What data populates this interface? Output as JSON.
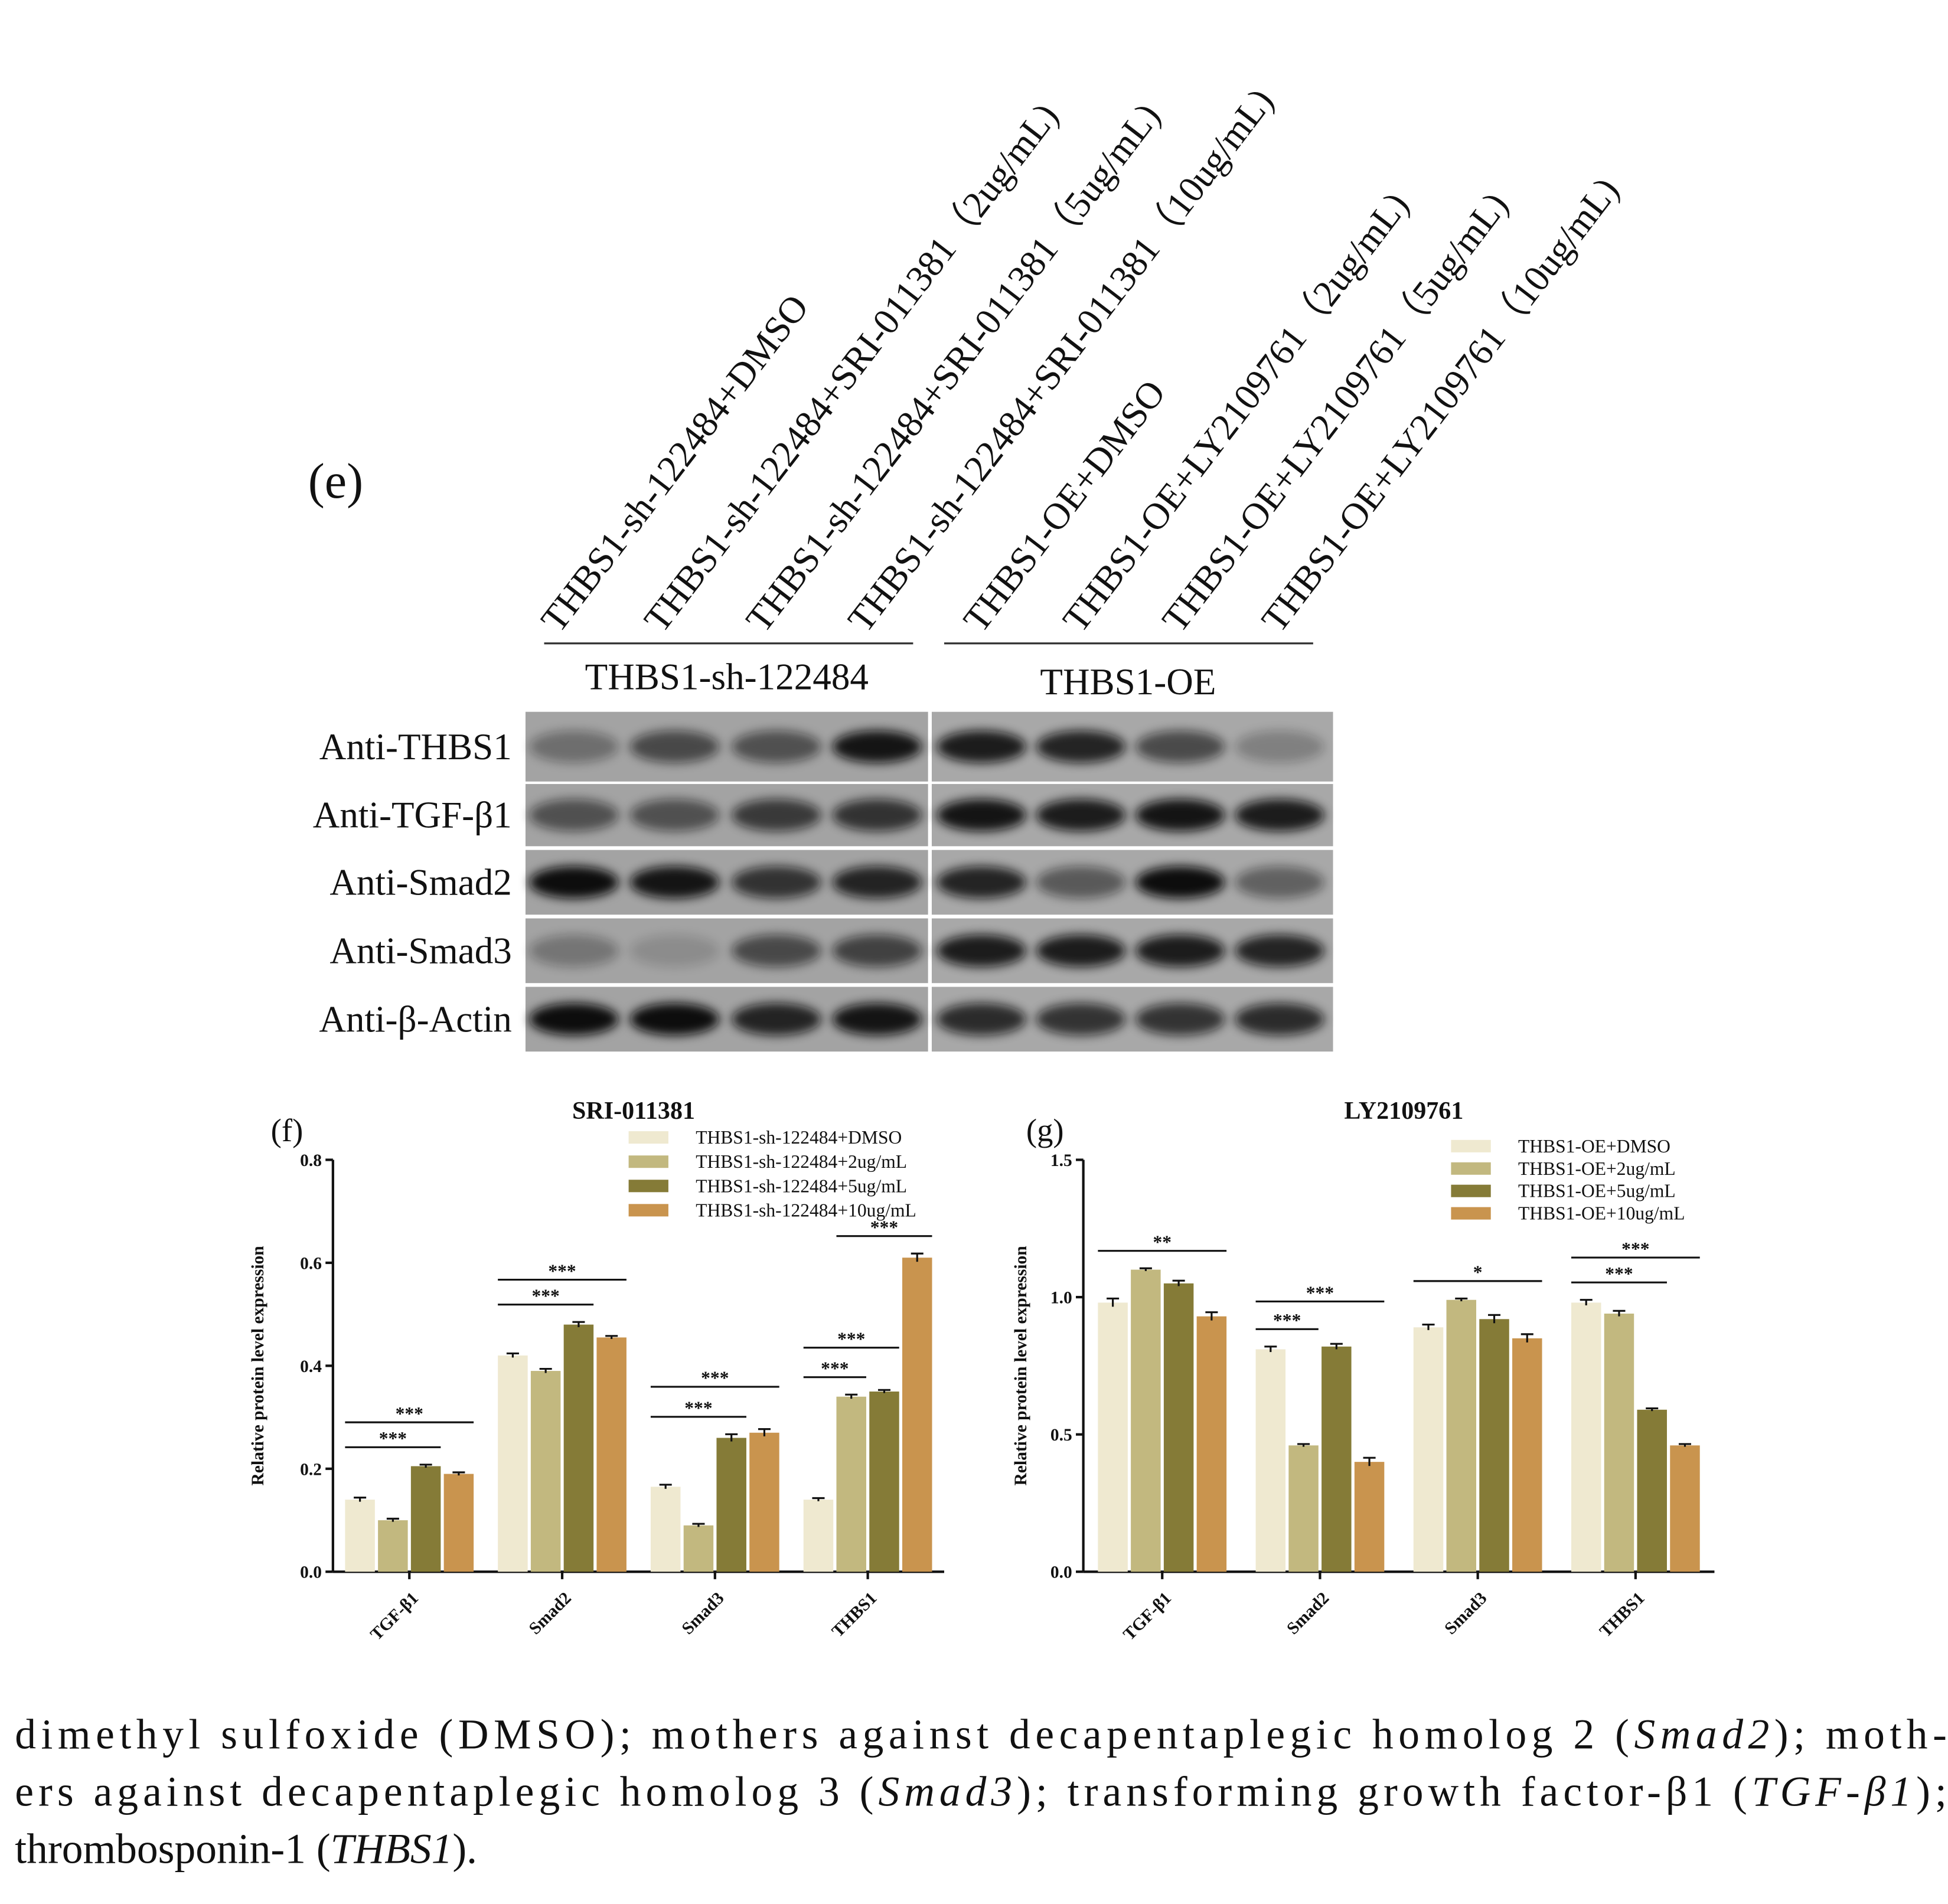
{
  "blot": {
    "panel_label": "(e)",
    "lanes": [
      "THBS1-sh-122484+DMSO",
      "THBS1-sh-122484+SRI-011381（2ug/mL)",
      "THBS1-sh-122484+SRI-011381（5ug/mL)",
      "THBS1-sh-122484+SRI-011381（10ug/mL)",
      "THBS1-OE+DMSO",
      "THBS1-OE+LY2109761（2ug/mL)",
      "THBS1-OE+LY2109761（5ug/mL)",
      "THBS1-OE+LY2109761（10ug/mL)"
    ],
    "groups": [
      "THBS1-sh-122484",
      "THBS1-OE"
    ],
    "rows": [
      "Anti-THBS1",
      "Anti-TGF-β1",
      "Anti-Smad2",
      "Anti-Smad3",
      "Anti-β-Actin"
    ]
  },
  "chart_data": [
    {
      "type": "bar",
      "panel_label": "(f)",
      "title": "SRI-011381",
      "y_label": "Relative  protein level expression",
      "categories": [
        "TGF-β1",
        "Smad2",
        "Smad3",
        "THBS1"
      ],
      "series": [
        {
          "name": "THBS1-sh-122484+DMSO",
          "color": "#efe9d0",
          "values": [
            0.14,
            0.42,
            0.165,
            0.14
          ],
          "errors": [
            0.004,
            0.004,
            0.004,
            0.003
          ]
        },
        {
          "name": "THBS1-sh-122484+2ug/mL",
          "color": "#c2b87f",
          "values": [
            0.1,
            0.39,
            0.09,
            0.34
          ],
          "errors": [
            0.003,
            0.004,
            0.003,
            0.004
          ]
        },
        {
          "name": "THBS1-sh-122484+5ug/mL",
          "color": "#857b37",
          "values": [
            0.205,
            0.48,
            0.26,
            0.35
          ],
          "errors": [
            0.003,
            0.005,
            0.007,
            0.003
          ]
        },
        {
          "name": "THBS1-sh-122484+10ug/mL",
          "color": "#c9944e",
          "values": [
            0.19,
            0.455,
            0.27,
            0.61
          ],
          "errors": [
            0.003,
            0.003,
            0.007,
            0.008
          ]
        }
      ],
      "ylim": [
        0,
        0.8
      ],
      "yticks": [
        {
          "value": 0,
          "label": "0.0"
        },
        0.2,
        0.4,
        0.6,
        0.8
      ],
      "legend": "top-right",
      "annotations": [
        {
          "text": "***"
        },
        {
          "text": "***"
        },
        {
          "text": "***"
        },
        {
          "text": "***"
        },
        {
          "text": "***"
        },
        {
          "text": "***"
        },
        {
          "text": "***"
        },
        {
          "text": "***"
        },
        {
          "text": "***"
        }
      ]
    },
    {
      "type": "bar",
      "panel_label": "(g)",
      "title": "LY2109761",
      "y_label": "Relative  protein level expression",
      "categories": [
        "TGF-β1",
        "Smad2",
        "Smad3",
        "THBS1"
      ],
      "series": [
        {
          "name": "THBS1-OE+DMSO",
          "color": "#efe9d0",
          "values": [
            0.98,
            0.81,
            0.89,
            0.98
          ],
          "errors": [
            0.015,
            0.01,
            0.01,
            0.01
          ]
        },
        {
          "name": "THBS1-OE+2ug/mL",
          "color": "#c2b87f",
          "values": [
            1.1,
            0.46,
            0.99,
            0.94
          ],
          "errors": [
            0.005,
            0.005,
            0.005,
            0.01
          ]
        },
        {
          "name": "THBS1-OE+5ug/mL",
          "color": "#857b37",
          "values": [
            1.05,
            0.82,
            0.92,
            0.59
          ],
          "errors": [
            0.01,
            0.01,
            0.015,
            0.005
          ]
        },
        {
          "name": "THBS1-OE+10ug/mL",
          "color": "#c9944e",
          "values": [
            0.93,
            0.4,
            0.85,
            0.46
          ],
          "errors": [
            0.015,
            0.015,
            0.015,
            0.005
          ]
        }
      ],
      "ylim": [
        0,
        1.5
      ],
      "yticks": [
        {
          "value": 0,
          "label": "0.0"
        },
        0.5,
        {
          "value": 1,
          "label": "1.0"
        },
        1.5
      ],
      "legend": "top-right",
      "annotations": [
        {
          "text": "**"
        },
        {
          "text": "***"
        },
        {
          "text": "***"
        },
        {
          "text": "*"
        },
        {
          "text": "***"
        },
        {
          "text": "***"
        }
      ]
    }
  ],
  "caption": {
    "lines": [
      [
        "dimethyl sulfoxide (DMSO); mothers against decapentaplegic homolog 2 (",
        "Smad2",
        "); moth-"
      ],
      [
        "ers against decapentaplegic homolog 3 (",
        "Smad3",
        "); transforming growth factor-β1 (",
        "TGF-β1",
        ");"
      ],
      [
        "thrombosponin-1 (",
        "THBS1",
        ")."
      ]
    ]
  }
}
